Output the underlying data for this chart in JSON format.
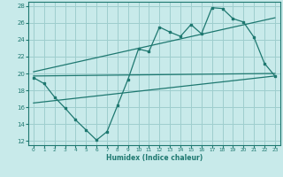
{
  "title": "",
  "xlabel": "Humidex (Indice chaleur)",
  "ylabel": "",
  "bg_color": "#c8eaea",
  "grid_color": "#9ecece",
  "line_color": "#1e7870",
  "xlim": [
    -0.5,
    23.5
  ],
  "ylim": [
    11.5,
    28.5
  ],
  "xticks": [
    0,
    1,
    2,
    3,
    4,
    5,
    6,
    7,
    8,
    9,
    10,
    11,
    12,
    13,
    14,
    15,
    16,
    17,
    18,
    19,
    20,
    21,
    22,
    23
  ],
  "yticks": [
    12,
    14,
    16,
    18,
    20,
    22,
    24,
    26,
    28
  ],
  "main_x": [
    0,
    1,
    2,
    3,
    4,
    5,
    6,
    7,
    8,
    9,
    10,
    11,
    12,
    13,
    14,
    15,
    16,
    17,
    18,
    19,
    20,
    21,
    22,
    23
  ],
  "main_y": [
    19.5,
    18.8,
    17.2,
    15.9,
    14.5,
    13.3,
    12.1,
    13.1,
    16.2,
    19.3,
    22.9,
    22.6,
    25.5,
    24.9,
    24.4,
    25.8,
    24.7,
    27.8,
    27.7,
    26.5,
    26.1,
    24.3,
    21.2,
    19.7
  ],
  "trend1_x": [
    0,
    23
  ],
  "trend1_y": [
    19.7,
    20.0
  ],
  "trend2_x": [
    0,
    23
  ],
  "trend2_y": [
    20.2,
    26.6
  ],
  "trend3_x": [
    0,
    23
  ],
  "trend3_y": [
    16.5,
    19.7
  ]
}
